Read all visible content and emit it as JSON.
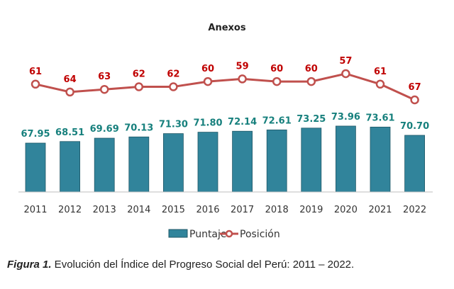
{
  "chart_data": {
    "type": "bar+line",
    "title": "Anexos",
    "categories": [
      "2011",
      "2012",
      "2013",
      "2014",
      "2015",
      "2016",
      "2017",
      "2018",
      "2019",
      "2020",
      "2021",
      "2022"
    ],
    "series": [
      {
        "name": "Puntaje",
        "type": "bar",
        "color": "#31849b",
        "label_color": "#17807d",
        "values": [
          67.95,
          68.51,
          69.69,
          70.13,
          71.3,
          71.8,
          72.14,
          72.61,
          73.25,
          73.96,
          73.61,
          70.7
        ]
      },
      {
        "name": "Posición",
        "type": "line",
        "color": "#c0504d",
        "label_color": "#c00000",
        "values": [
          61,
          64,
          63,
          62,
          62,
          60,
          59,
          60,
          60,
          57,
          61,
          67
        ]
      }
    ],
    "legend": "bottom",
    "grid": false
  },
  "caption": {
    "label": "Figura 1.",
    "text": " Evolución del Índice del Progreso Social del Perú: 2011 – 2022."
  }
}
